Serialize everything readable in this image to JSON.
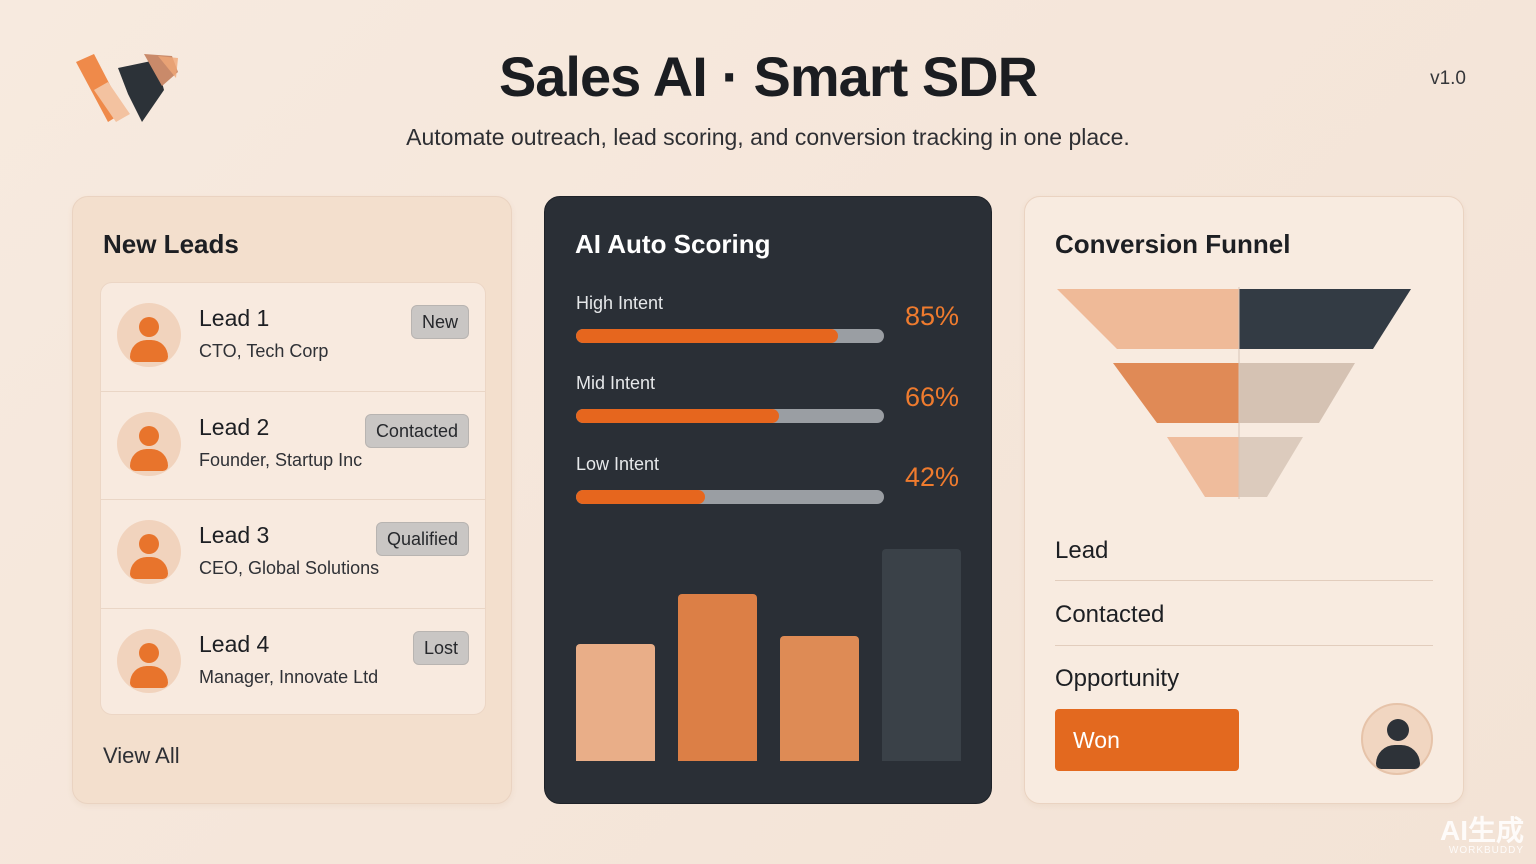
{
  "header": {
    "title": "Sales AI · Smart SDR",
    "subtitle": "Automate outreach, lead scoring, and conversion tracking in one place.",
    "version": "v1.0"
  },
  "leads": {
    "title": "New Leads",
    "items": [
      {
        "name": "Lead 1",
        "role": "CTO, Tech Corp",
        "status": "New"
      },
      {
        "name": "Lead 2",
        "role": "Founder, Startup Inc",
        "status": "Contacted"
      },
      {
        "name": "Lead 3",
        "role": "CEO, Global Solutions",
        "status": "Qualified"
      },
      {
        "name": "Lead 4",
        "role": "Manager, Innovate Ltd",
        "status": "Lost"
      }
    ],
    "view_all": "View All"
  },
  "scoring": {
    "title": "AI Auto Scoring",
    "intents": [
      {
        "label": "High Intent",
        "value": 85,
        "display": "85%"
      },
      {
        "label": "Mid Intent",
        "value": 66,
        "display": "66%"
      },
      {
        "label": "Low Intent",
        "value": 42,
        "display": "42%"
      }
    ]
  },
  "chart_data": {
    "type": "bar",
    "values": [
      0.55,
      0.79,
      0.59,
      1.0
    ],
    "colors": [
      "#e9ae88",
      "#dc7f46",
      "#de8b55",
      "#3a4148"
    ]
  },
  "funnel": {
    "title": "Conversion Funnel",
    "stages": [
      "Lead",
      "Contacted",
      "Opportunity"
    ],
    "won_label": "Won"
  },
  "colors": {
    "accent": "#e3691f",
    "dark_panel": "#2a2f36",
    "badge": "#c9c6c4"
  },
  "watermark": {
    "line1": "AI生成",
    "line2": "WORKBUDDY"
  }
}
